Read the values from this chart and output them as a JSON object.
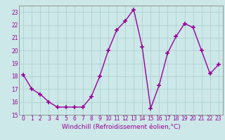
{
  "x": [
    0,
    1,
    2,
    3,
    4,
    5,
    6,
    7,
    8,
    9,
    10,
    11,
    12,
    13,
    14,
    15,
    16,
    17,
    18,
    19,
    20,
    21,
    22,
    23
  ],
  "y": [
    18.1,
    17.0,
    16.6,
    16.0,
    15.6,
    15.6,
    15.6,
    15.6,
    16.4,
    18.0,
    20.0,
    21.6,
    22.3,
    23.2,
    20.3,
    15.5,
    17.3,
    19.8,
    21.1,
    22.1,
    21.8,
    20.0,
    18.2,
    18.9
  ],
  "line_color": "#990099",
  "marker": "+",
  "marker_size": 4,
  "marker_linewidth": 1.2,
  "line_width": 1.0,
  "xlabel": "Windchill (Refroidissement éolien,°C)",
  "xlim": [
    -0.5,
    23.5
  ],
  "ylim": [
    15,
    23.5
  ],
  "yticks": [
    15,
    16,
    17,
    18,
    19,
    20,
    21,
    22,
    23
  ],
  "xticks": [
    0,
    1,
    2,
    3,
    4,
    5,
    6,
    7,
    8,
    9,
    10,
    11,
    12,
    13,
    14,
    15,
    16,
    17,
    18,
    19,
    20,
    21,
    22,
    23
  ],
  "bg_color": "#cce8e8",
  "grid_color": "#aacccc",
  "tick_label_color": "#990099",
  "xlabel_color": "#990099",
  "tick_fontsize": 5.5,
  "xlabel_fontsize": 6.5,
  "spine_color": "#888888"
}
